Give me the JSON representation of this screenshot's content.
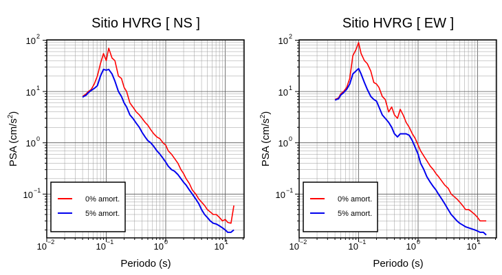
{
  "chart_data": [
    {
      "type": "line",
      "title": "Sitio HVRG [ NS ]",
      "xlabel": "Periodo (s)",
      "ylabel": "PSA (cm/s",
      "ylabel_sup": "2",
      "ylabel_close": ")",
      "x_scale": "log",
      "y_scale": "log",
      "xlim": [
        0.01,
        20
      ],
      "ylim": [
        0.014,
        100
      ],
      "grid": true,
      "legend_position": "bottom-left",
      "x_ticks": [
        {
          "base": "10",
          "exp": "−2"
        },
        {
          "base": "10",
          "exp": "−1"
        },
        {
          "base": "10",
          "exp": "0"
        },
        {
          "base": "10",
          "exp": "1"
        }
      ],
      "y_ticks": [
        {
          "base": "10",
          "exp": "−1"
        },
        {
          "base": "10",
          "exp": "0"
        },
        {
          "base": "10",
          "exp": "1"
        },
        {
          "base": "10",
          "exp": "2"
        }
      ],
      "x": [
        0.04,
        0.046,
        0.05,
        0.056,
        0.063,
        0.071,
        0.08,
        0.09,
        0.1,
        0.11,
        0.125,
        0.14,
        0.16,
        0.18,
        0.2,
        0.22,
        0.25,
        0.28,
        0.32,
        0.36,
        0.4,
        0.45,
        0.5,
        0.56,
        0.63,
        0.71,
        0.8,
        0.9,
        1.0,
        1.1,
        1.25,
        1.4,
        1.6,
        1.8,
        2.0,
        2.2,
        2.5,
        2.8,
        3.2,
        3.6,
        4.0,
        4.5,
        5.0,
        5.6,
        6.3,
        7.1,
        8.0,
        9.0,
        10.0,
        11.0,
        12.5,
        14.0
      ],
      "series": [
        {
          "name": "0% amort.",
          "color": "#ff0000",
          "values": [
            8,
            9,
            10,
            11,
            14,
            20,
            35,
            55,
            40,
            70,
            45,
            40,
            20,
            18,
            12,
            10,
            6,
            5,
            4,
            3.5,
            3,
            2.5,
            2.2,
            1.8,
            1.5,
            1.3,
            1.2,
            1.0,
            0.9,
            0.7,
            0.6,
            0.5,
            0.4,
            0.3,
            0.25,
            0.2,
            0.16,
            0.12,
            0.1,
            0.08,
            0.07,
            0.06,
            0.05,
            0.045,
            0.04,
            0.04,
            0.035,
            0.03,
            0.032,
            0.028,
            0.027,
            0.06
          ]
        },
        {
          "name": "5% amort.",
          "color": "#0000ee",
          "values": [
            7.8,
            8.5,
            9.5,
            10.5,
            11.5,
            13,
            20,
            27,
            26,
            27,
            22,
            16,
            10,
            8,
            6,
            5,
            3.5,
            3,
            2.4,
            2,
            1.6,
            1.3,
            1.1,
            1.0,
            0.85,
            0.7,
            0.6,
            0.5,
            0.42,
            0.35,
            0.3,
            0.28,
            0.24,
            0.2,
            0.17,
            0.15,
            0.12,
            0.1,
            0.08,
            0.065,
            0.05,
            0.04,
            0.035,
            0.03,
            0.027,
            0.026,
            0.024,
            0.022,
            0.02,
            0.018,
            0.018,
            0.02
          ]
        }
      ]
    },
    {
      "type": "line",
      "title": "Sitio HVRG [ EW ]",
      "xlabel": "Periodo (s)",
      "ylabel": "PSA (cm/s",
      "ylabel_sup": "2",
      "ylabel_close": ")",
      "x_scale": "log",
      "y_scale": "log",
      "xlim": [
        0.01,
        20
      ],
      "ylim": [
        0.014,
        100
      ],
      "grid": true,
      "legend_position": "bottom-left",
      "x_ticks": [
        {
          "base": "10",
          "exp": "−2"
        },
        {
          "base": "10",
          "exp": "−1"
        },
        {
          "base": "10",
          "exp": "0"
        },
        {
          "base": "10",
          "exp": "1"
        }
      ],
      "y_ticks": [
        {
          "base": "10",
          "exp": "−1"
        },
        {
          "base": "10",
          "exp": "0"
        },
        {
          "base": "10",
          "exp": "1"
        },
        {
          "base": "10",
          "exp": "2"
        }
      ],
      "x": [
        0.04,
        0.046,
        0.05,
        0.056,
        0.063,
        0.071,
        0.08,
        0.09,
        0.1,
        0.11,
        0.125,
        0.14,
        0.16,
        0.18,
        0.2,
        0.22,
        0.25,
        0.28,
        0.32,
        0.36,
        0.4,
        0.45,
        0.5,
        0.56,
        0.63,
        0.71,
        0.8,
        0.9,
        1.0,
        1.1,
        1.25,
        1.4,
        1.6,
        1.8,
        2.0,
        2.2,
        2.5,
        2.8,
        3.2,
        3.6,
        4.0,
        4.5,
        5.0,
        5.6,
        6.3,
        7.1,
        8.0,
        9.0,
        10.0,
        11.0,
        12.5,
        14.0
      ],
      "series": [
        {
          "name": "0% amort.",
          "color": "#ff0000",
          "values": [
            7,
            7.5,
            9,
            10,
            12,
            18,
            50,
            65,
            90,
            55,
            40,
            35,
            25,
            15,
            14,
            12,
            8,
            7,
            4,
            5,
            3.5,
            3,
            4.5,
            3.5,
            2.5,
            2,
            1.5,
            1.2,
            0.9,
            0.7,
            0.55,
            0.45,
            0.35,
            0.3,
            0.25,
            0.22,
            0.18,
            0.15,
            0.13,
            0.1,
            0.09,
            0.08,
            0.07,
            0.06,
            0.05,
            0.05,
            0.045,
            0.04,
            0.035,
            0.03,
            0.03,
            0.03
          ]
        },
        {
          "name": "5% amort.",
          "color": "#0000ee",
          "values": [
            6.8,
            7.2,
            8.5,
            9.5,
            11,
            14,
            22,
            25,
            28,
            22,
            15,
            11,
            8,
            7,
            6.5,
            5,
            3.5,
            3,
            2.5,
            2,
            1.5,
            1.3,
            1.5,
            1.5,
            1.5,
            1.4,
            1.1,
            0.8,
            0.6,
            0.4,
            0.3,
            0.22,
            0.17,
            0.14,
            0.12,
            0.1,
            0.08,
            0.065,
            0.05,
            0.04,
            0.035,
            0.03,
            0.027,
            0.025,
            0.023,
            0.022,
            0.021,
            0.02,
            0.019,
            0.018,
            0.018,
            0.016
          ]
        }
      ]
    }
  ]
}
